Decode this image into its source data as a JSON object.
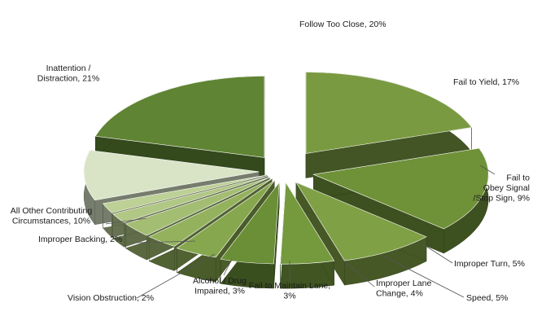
{
  "chart_data": {
    "type": "pie",
    "style": "3d-exploded",
    "title": "",
    "slices": [
      {
        "label": [
          "Follow Too Close, 20%"
        ],
        "value": 20,
        "color": "#7a9a42"
      },
      {
        "label": [
          "Fail to Yield, 17%"
        ],
        "value": 17,
        "color": "#6f9138"
      },
      {
        "label": [
          "Fail to",
          "Obey Signal",
          "/Stop Sign, 9%"
        ],
        "value": 9,
        "color": "#7fa045"
      },
      {
        "label": [
          "Improper Turn, 5%"
        ],
        "value": 5,
        "color": "#759a3e"
      },
      {
        "label": [
          "Speed, 5%"
        ],
        "value": 5,
        "color": "#6a8f36"
      },
      {
        "label": [
          "Improper Lane",
          "Change, 4%"
        ],
        "value": 4,
        "color": "#86a74d"
      },
      {
        "label": [
          "Fail to Maintain Lane,",
          "3%"
        ],
        "value": 3,
        "color": "#94b25d"
      },
      {
        "label": [
          "Alcohol / Drug",
          "Impaired, 3%"
        ],
        "value": 3,
        "color": "#a3bd72"
      },
      {
        "label": [
          "Vision Obstruction, 2%"
        ],
        "value": 2,
        "color": "#b1c786"
      },
      {
        "label": [
          "Improper Backing, 2%"
        ],
        "value": 2,
        "color": "#bdd096"
      },
      {
        "label": [
          "All Other Contributing",
          "Circumstances, 10%"
        ],
        "value": 10,
        "color": "#d9e4c7"
      },
      {
        "label": [
          "Inattention /",
          "Distraction, 21%"
        ],
        "value": 21,
        "color": "#5f8433"
      }
    ]
  }
}
